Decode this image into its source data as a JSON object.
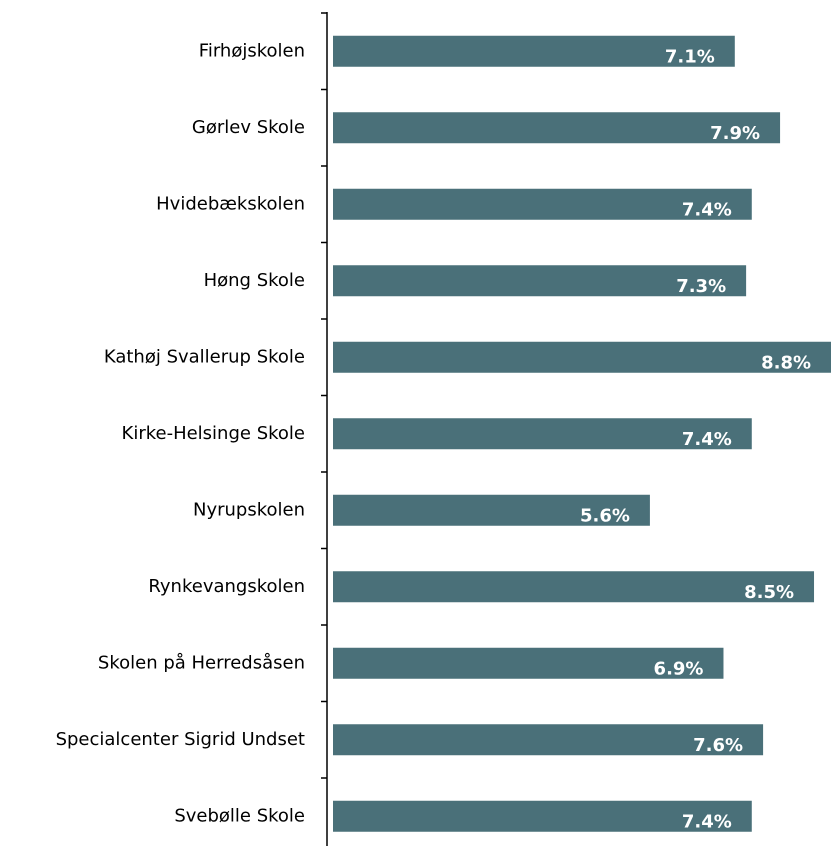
{
  "chart_data": {
    "type": "bar",
    "orientation": "horizontal",
    "color": "#4a7079",
    "categories": [
      "Firhøjskolen",
      "Gørlev Skole",
      "Hvidebækskolen",
      "Høng Skole",
      "Kathøj Svallerup Skole",
      "Kirke-Helsinge Skole",
      "Nyrupskolen",
      "Rynkevangskolen",
      "Skolen på Herredsåsen",
      "Specialcenter Sigrid Undset",
      "Svebølle Skole"
    ],
    "values": [
      7.1,
      7.9,
      7.4,
      7.3,
      8.8,
      7.4,
      5.6,
      8.5,
      6.9,
      7.6,
      7.4
    ],
    "value_labels": [
      "7.1%",
      "7.9%",
      "7.4%",
      "7.3%",
      "8.8%",
      "7.4%",
      "5.6%",
      "8.5%",
      "6.9%",
      "7.6%",
      "7.4%"
    ]
  }
}
